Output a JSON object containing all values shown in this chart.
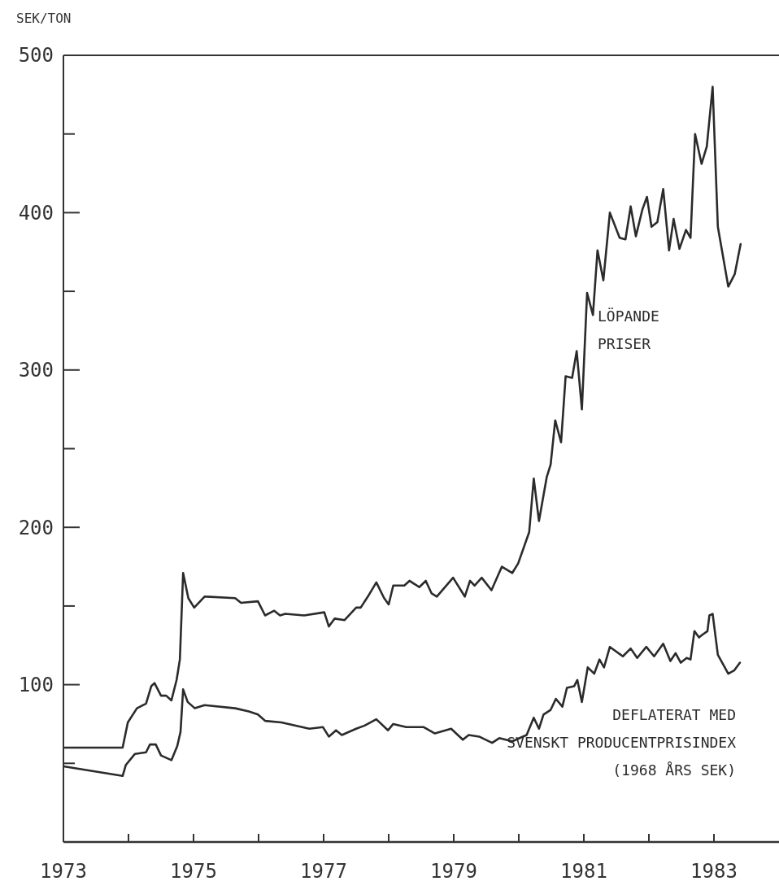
{
  "chart_data": {
    "type": "line",
    "ylabel": "SEK/TON",
    "xlim": [
      1973,
      1984
    ],
    "ylim": [
      0,
      500
    ],
    "xticks": [
      1973,
      {
        "value": 1974,
        "label": null
      },
      1975,
      {
        "value": 1976,
        "label": null
      },
      1977,
      {
        "value": 1978,
        "label": null
      },
      1979,
      {
        "value": 1980,
        "label": null
      },
      1981,
      {
        "value": 1982,
        "label": null
      },
      1983
    ],
    "yticks": [
      {
        "value": 50,
        "label": null
      },
      100,
      {
        "value": 150,
        "label": null
      },
      200,
      {
        "value": 250,
        "label": null
      },
      300,
      {
        "value": 350,
        "label": null
      },
      400,
      {
        "value": 450,
        "label": null
      },
      500
    ],
    "grid": false,
    "marker": "none",
    "line_style": "solid",
    "series": [
      {
        "name": "LÖPANDE\nPRISER",
        "color": "#2b2b2b",
        "x": [
          1973.02,
          1973.91,
          1973.99,
          1974.13,
          1974.27,
          1974.35,
          1974.4,
          1974.5,
          1974.58,
          1974.66,
          1974.74,
          1974.79,
          1974.84,
          1974.92,
          1975.01,
          1975.17,
          1975.64,
          1975.73,
          1975.99,
          1976.1,
          1976.24,
          1976.33,
          1976.41,
          1976.7,
          1977.01,
          1977.08,
          1977.17,
          1977.32,
          1977.5,
          1977.57,
          1977.68,
          1977.81,
          1977.93,
          1978,
          1978.07,
          1978.24,
          1978.32,
          1978.47,
          1978.57,
          1978.66,
          1978.74,
          1978.99,
          1979.17,
          1979.25,
          1979.32,
          1979.43,
          1979.58,
          1979.74,
          1979.9,
          1979.99,
          1980.16,
          1980.23,
          1980.31,
          1980.43,
          1980.49,
          1980.56,
          1980.65,
          1980.72,
          1980.82,
          1980.89,
          1980.97,
          1981.05,
          1981.14,
          1981.21,
          1981.3,
          1981.4,
          1981.55,
          1981.64,
          1981.72,
          1981.8,
          1981.9,
          1981.97,
          1982.04,
          1982.13,
          1982.22,
          1982.31,
          1982.38,
          1982.47,
          1982.57,
          1982.64,
          1982.71,
          1982.81,
          1982.89,
          1982.98,
          1983.06,
          1983.22,
          1983.32,
          1983.41
        ],
        "values": [
          60,
          60,
          76,
          85,
          88,
          99,
          101,
          93,
          93,
          90,
          103,
          116,
          171,
          155,
          149,
          156,
          155,
          152,
          153,
          144,
          147,
          144,
          145,
          144,
          146,
          137,
          142,
          141,
          149,
          149,
          156,
          165,
          155,
          151,
          163,
          163,
          166,
          162,
          166,
          158,
          156,
          168,
          156,
          166,
          163,
          168,
          160,
          175,
          171,
          177,
          197,
          231,
          204,
          232,
          240,
          268,
          254,
          296,
          295,
          312,
          275,
          349,
          335,
          376,
          357,
          400,
          384,
          383,
          404,
          385,
          402,
          410,
          391,
          394,
          415,
          376,
          396,
          377,
          389,
          384,
          450,
          431,
          442,
          480,
          391,
          353,
          361,
          380
        ]
      },
      {
        "name": "DEFLATERAT MED\nSVENSKT PRODUCENTPRISINDEX\n(1968 ÅRS SEK)",
        "color": "#2b2b2b",
        "x": [
          1973.02,
          1973.91,
          1973.96,
          1974.1,
          1974.27,
          1974.33,
          1974.42,
          1974.5,
          1974.66,
          1974.75,
          1974.8,
          1974.84,
          1974.91,
          1975.02,
          1975.17,
          1975.64,
          1975.85,
          1975.99,
          1976.1,
          1976.35,
          1976.78,
          1976.99,
          1977.08,
          1977.19,
          1977.28,
          1977.5,
          1977.63,
          1977.81,
          1977.99,
          1978.07,
          1978.27,
          1978.54,
          1978.71,
          1978.96,
          1979.14,
          1979.23,
          1979.39,
          1979.59,
          1979.7,
          1979.9,
          1980.12,
          1980.23,
          1980.31,
          1980.38,
          1980.49,
          1980.57,
          1980.67,
          1980.74,
          1980.85,
          1980.9,
          1980.97,
          1981.06,
          1981.16,
          1981.24,
          1981.31,
          1981.4,
          1981.6,
          1981.72,
          1981.82,
          1981.96,
          1982.08,
          1982.22,
          1982.33,
          1982.41,
          1982.49,
          1982.58,
          1982.64,
          1982.7,
          1982.77,
          1982.83,
          1982.9,
          1982.93,
          1982.98,
          1983.06,
          1983.22,
          1983.31,
          1983.4
        ],
        "values": [
          48,
          42,
          49,
          56,
          57,
          62,
          62,
          55,
          52,
          61,
          70,
          97,
          89,
          85,
          87,
          85,
          83,
          81,
          77,
          76,
          72,
          73,
          67,
          71,
          68,
          72,
          74,
          78,
          71,
          75,
          73,
          73,
          69,
          72,
          65,
          68,
          67,
          63,
          66,
          64,
          68,
          79,
          72,
          81,
          84,
          91,
          86,
          98,
          99,
          103,
          89,
          111,
          107,
          116,
          111,
          124,
          118,
          123,
          117,
          124,
          118,
          126,
          115,
          120,
          114,
          117,
          116,
          134,
          130,
          132,
          134,
          144,
          145,
          119,
          107,
          109,
          114
        ]
      }
    ]
  }
}
